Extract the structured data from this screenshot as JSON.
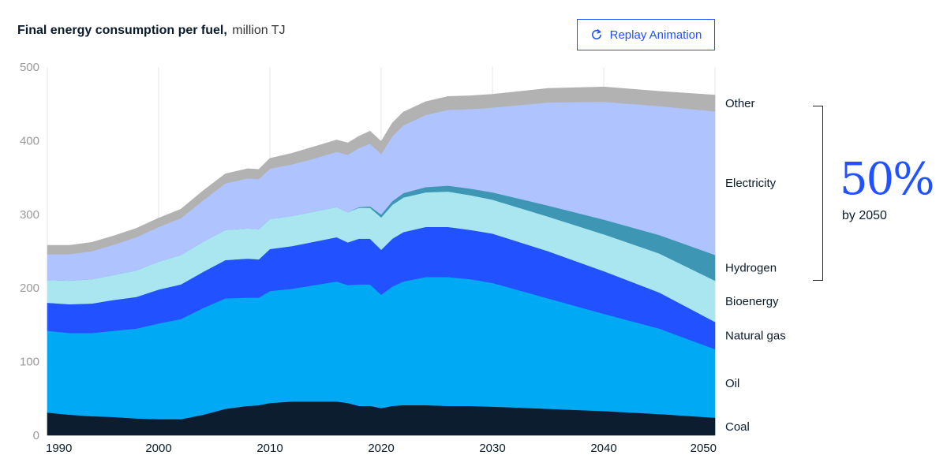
{
  "header": {
    "title": "Final energy consumption per fuel,",
    "unit": "million TJ"
  },
  "replay_button": {
    "label": "Replay Animation",
    "icon": "replay-icon"
  },
  "callout": {
    "value": "50%",
    "caption": "by 2050",
    "bracket_series": [
      "Electricity",
      "Hydrogen"
    ]
  },
  "chart_data": {
    "type": "area",
    "stacked": true,
    "title": "Final energy consumption per fuel, million TJ",
    "xlabel": "",
    "ylabel": "",
    "xlim": [
      1990,
      2050
    ],
    "ylim": [
      0,
      500
    ],
    "x_ticks": [
      1990,
      2000,
      2010,
      2020,
      2030,
      2040,
      2050
    ],
    "y_ticks": [
      0,
      100,
      200,
      300,
      400,
      500
    ],
    "grid": "vertical",
    "legend": "right (labels at series ends)",
    "x": [
      1990,
      1992,
      1994,
      1996,
      1998,
      2000,
      2002,
      2004,
      2006,
      2008,
      2009,
      2010,
      2012,
      2014,
      2016,
      2017,
      2018,
      2019,
      2020,
      2021,
      2022,
      2024,
      2026,
      2028,
      2030,
      2035,
      2040,
      2045,
      2050
    ],
    "series": [
      {
        "name": "Coal",
        "color": "#0b1d2e",
        "values": [
          31,
          28,
          26,
          25,
          23,
          22,
          22,
          28,
          36,
          40,
          41,
          44,
          46,
          46,
          46,
          44,
          40,
          40,
          37,
          40,
          41,
          41,
          40,
          40,
          39,
          36,
          33,
          29,
          24
        ]
      },
      {
        "name": "Oil",
        "color": "#00a9f4",
        "values": [
          111,
          111,
          113,
          117,
          122,
          130,
          136,
          145,
          150,
          147,
          146,
          152,
          153,
          158,
          163,
          160,
          165,
          165,
          154,
          162,
          168,
          174,
          175,
          172,
          168,
          150,
          132,
          116,
          93
        ]
      },
      {
        "name": "Natural gas",
        "color": "#2251ff",
        "values": [
          38,
          39,
          40,
          42,
          43,
          46,
          47,
          49,
          52,
          53,
          52,
          57,
          58,
          59,
          60,
          58,
          62,
          62,
          61,
          65,
          67,
          68,
          68,
          67,
          67,
          64,
          58,
          49,
          37
        ]
      },
      {
        "name": "Bioenergy",
        "color": "#aae6f0",
        "values": [
          31,
          32,
          33,
          34,
          36,
          38,
          40,
          41,
          41,
          41,
          41,
          41,
          41,
          41,
          41,
          41,
          42,
          42,
          44,
          46,
          47,
          47,
          48,
          47,
          46,
          47,
          50,
          53,
          56
        ]
      },
      {
        "name": "Hydrogen",
        "color": "#3c96b4",
        "values": [
          0,
          0,
          0,
          0,
          0,
          0,
          0,
          0,
          0,
          0,
          0,
          0,
          0,
          0,
          0,
          0,
          1,
          2,
          4,
          5,
          6,
          7,
          8,
          9,
          10,
          15,
          20,
          25,
          35
        ]
      },
      {
        "name": "Electricity",
        "color": "#afc3ff",
        "values": [
          35,
          36,
          38,
          41,
          45,
          47,
          50,
          56,
          63,
          68,
          68,
          68,
          70,
          72,
          75,
          78,
          80,
          85,
          82,
          88,
          92,
          98,
          103,
          108,
          115,
          140,
          160,
          175,
          195
        ]
      },
      {
        "name": "Other",
        "color": "#b2b2b2",
        "values": [
          12,
          12,
          12,
          12,
          12,
          12,
          12,
          13,
          13,
          13,
          13,
          14,
          15,
          16,
          16,
          16,
          16,
          17,
          17,
          18,
          18,
          18,
          18,
          18,
          18,
          19,
          20,
          20,
          22
        ]
      }
    ]
  }
}
